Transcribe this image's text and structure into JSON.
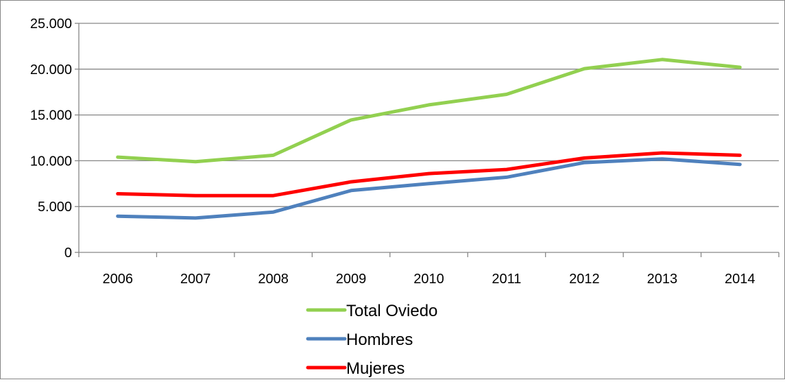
{
  "chart_data": {
    "type": "line",
    "title": "",
    "xlabel": "",
    "ylabel": "",
    "categories": [
      "2006",
      "2007",
      "2008",
      "2009",
      "2010",
      "2011",
      "2012",
      "2013",
      "2014"
    ],
    "ylim": [
      0,
      25000
    ],
    "yticks": [
      0,
      5000,
      10000,
      15000,
      20000,
      25000
    ],
    "ytick_labels": [
      "0",
      "5.000",
      "10.000",
      "15.000",
      "20.000",
      "25.000"
    ],
    "grid": "horizontal",
    "legend_position": "bottom",
    "series": [
      {
        "name": "Total Oviedo",
        "color": "#92d050",
        "values": [
          10400,
          9900,
          10600,
          14450,
          16100,
          17250,
          20050,
          21050,
          20200
        ]
      },
      {
        "name": "Hombres",
        "color": "#4f81bd",
        "values": [
          3950,
          3750,
          4400,
          6750,
          7500,
          8200,
          9800,
          10200,
          9600
        ]
      },
      {
        "name": "Mujeres",
        "color": "#ff0000",
        "values": [
          6400,
          6200,
          6200,
          7700,
          8600,
          9050,
          10300,
          10850,
          10600
        ]
      }
    ]
  }
}
